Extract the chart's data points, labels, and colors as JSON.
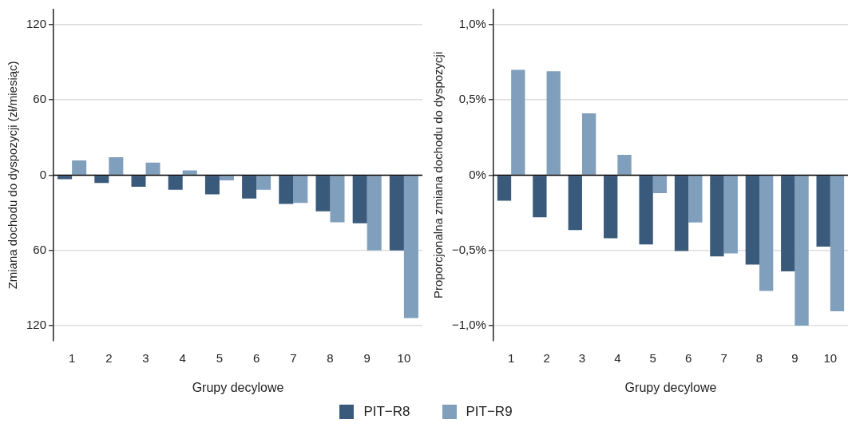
{
  "chart_data": [
    {
      "type": "bar",
      "xlabel": "Grupy decylowe",
      "ylabel": "Zmiana dochodu do dyspozycji (zł/miesiąc)",
      "categories": [
        "1",
        "2",
        "3",
        "4",
        "5",
        "6",
        "7",
        "8",
        "9",
        "10"
      ],
      "series": [
        {
          "name": "PIT−R8",
          "color": "#3a5a7c",
          "values": [
            -3.2,
            -6.3,
            -9.3,
            -11.7,
            -15.4,
            -18.6,
            -23,
            -28.9,
            -38.4,
            -60
          ]
        },
        {
          "name": "PIT−R9",
          "color": "#7f9fbc",
          "values": [
            11.7,
            14.3,
            9.9,
            3.8,
            -4.2,
            -11.7,
            -22.2,
            -37.6,
            -60,
            -114
          ]
        }
      ],
      "ylim": [
        -132,
        132
      ],
      "yticks": [
        {
          "value": -120,
          "label": "120"
        },
        {
          "value": -60,
          "label": "60"
        },
        0,
        60,
        120
      ],
      "ref_lines": [
        {
          "axis": "y",
          "value": 0,
          "color": "#000000"
        }
      ],
      "grid": "y",
      "legend": "bottom"
    },
    {
      "type": "bar",
      "xlabel": "Grupy decylowe",
      "ylabel": "Proporcjonalna zmiana dochodu do dyspozycji",
      "categories": [
        "1",
        "2",
        "3",
        "4",
        "5",
        "6",
        "7",
        "8",
        "9",
        "10"
      ],
      "series": [
        {
          "color": "#3a5a7c",
          "values": [
            -0.17,
            -0.28,
            -0.365,
            -0.42,
            -0.46,
            -0.505,
            -0.54,
            -0.595,
            -0.64,
            -0.475
          ]
        },
        {
          "color": "#7f9fbc",
          "values": [
            0.7,
            0.69,
            0.41,
            0.135,
            -0.12,
            -0.315,
            -0.52,
            -0.77,
            -1.0,
            -0.905
          ]
        }
      ],
      "ylim": [
        -1.1,
        1.1
      ],
      "yticks": [
        {
          "value": -1,
          "label": "−1,0%"
        },
        {
          "value": -0.5,
          "label": "−0,5%"
        },
        {
          "value": 0,
          "label": "0%"
        },
        {
          "value": 0.5,
          "label": "0,5%"
        },
        {
          "value": 1,
          "label": "1,0%"
        }
      ],
      "ref_lines": [
        {
          "axis": "y",
          "value": 0,
          "color": "#000000"
        }
      ],
      "grid": "y"
    }
  ]
}
